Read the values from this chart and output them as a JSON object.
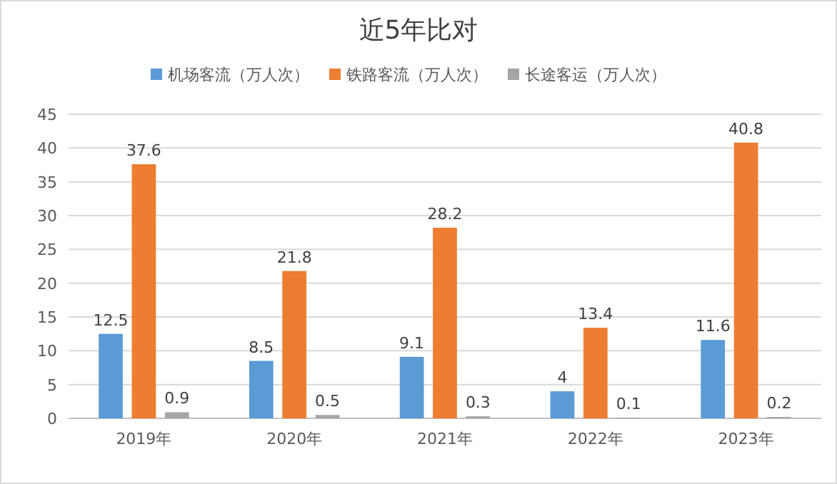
{
  "chart_data": {
    "type": "bar",
    "title": "近5年比对",
    "categories": [
      "2019年",
      "2020年",
      "2021年",
      "2022年",
      "2023年"
    ],
    "series": [
      {
        "name": "机场客流（万人次）",
        "color": "#5b9bd5",
        "values": [
          12.5,
          8.5,
          9.1,
          4,
          11.6
        ]
      },
      {
        "name": "铁路客流（万人次）",
        "color": "#ed7d31",
        "values": [
          37.6,
          21.8,
          28.2,
          13.4,
          40.8
        ]
      },
      {
        "name": "长途客运（万人次）",
        "color": "#a5a5a5",
        "values": [
          0.9,
          0.5,
          0.3,
          0.1,
          0.2
        ]
      }
    ],
    "ylim": [
      0,
      45
    ],
    "yticks": [
      0,
      5,
      10,
      15,
      20,
      25,
      30,
      35,
      40,
      45
    ],
    "grid": "y",
    "legend": "top",
    "data_labels": true
  }
}
